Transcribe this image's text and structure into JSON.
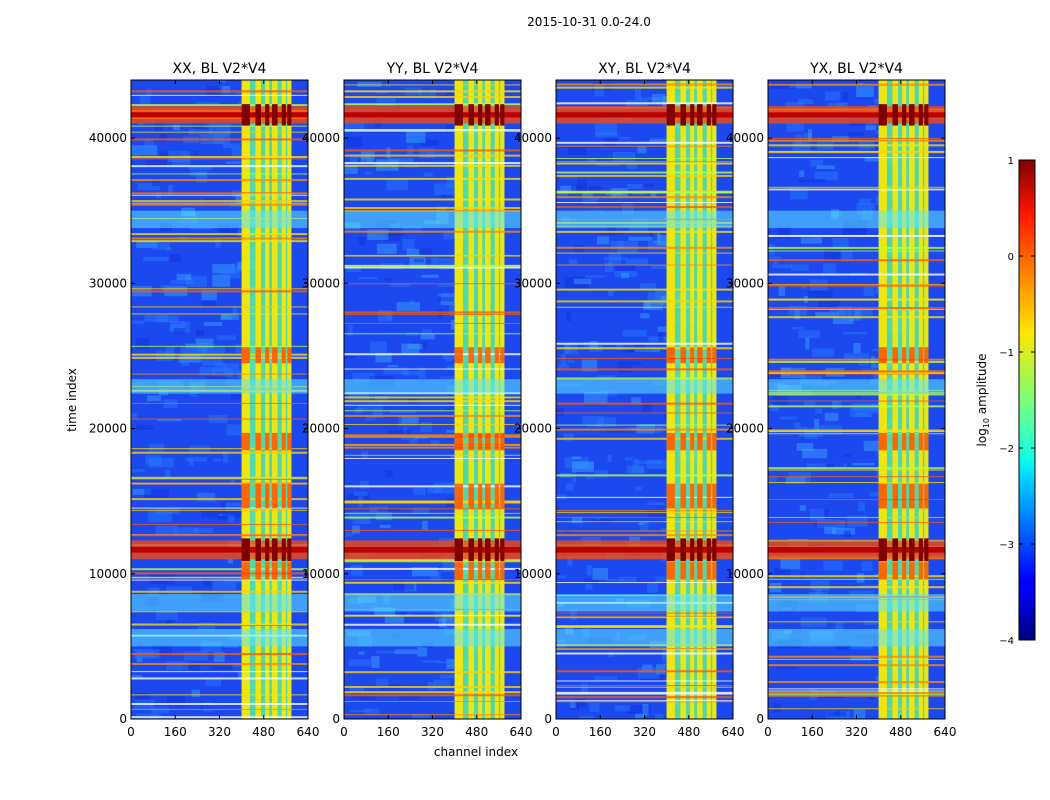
{
  "figure": {
    "suptitle": "2015-10-31 0.0-24.0",
    "ylabel": "time index",
    "xlabel": "channel index"
  },
  "colorbar": {
    "label_prefix": "log",
    "label_sub": "10",
    "label_suffix": " amplitude",
    "ticks": [
      1,
      0,
      -1,
      -2,
      -3,
      -4
    ],
    "tick_labels": [
      "1",
      "0",
      "−1",
      "−2",
      "−3",
      "−4"
    ],
    "vmin": -4,
    "vmax": 1,
    "colormap": "jet"
  },
  "chart_data": [
    {
      "type": "heatmap",
      "title": "XX, BL V2*V4",
      "xlabel": "",
      "ylabel": "time index",
      "xlim": [
        0,
        640
      ],
      "ylim": [
        0,
        44000
      ],
      "xticks": [
        0,
        160,
        320,
        480,
        640
      ],
      "yticks": [
        0,
        10000,
        20000,
        30000,
        40000
      ],
      "band_columns": [
        [
          400,
          430
        ],
        [
          450,
          470
        ],
        [
          485,
          500
        ],
        [
          510,
          530
        ],
        [
          545,
          560
        ],
        [
          565,
          580
        ]
      ],
      "high_rows": [
        [
          41000,
          42200
        ],
        [
          11000,
          12300
        ]
      ]
    },
    {
      "type": "heatmap",
      "title": "YY, BL V2*V4",
      "xlabel": "channel index",
      "ylabel": "",
      "xlim": [
        0,
        640
      ],
      "ylim": [
        0,
        44000
      ],
      "xticks": [
        0,
        160,
        320,
        480,
        640
      ],
      "yticks": [
        0,
        10000,
        20000,
        30000,
        40000
      ],
      "band_columns": [
        [
          400,
          430
        ],
        [
          450,
          470
        ],
        [
          485,
          500
        ],
        [
          510,
          530
        ],
        [
          545,
          560
        ],
        [
          565,
          580
        ]
      ],
      "high_rows": [
        [
          41000,
          42200
        ],
        [
          11000,
          12300
        ]
      ]
    },
    {
      "type": "heatmap",
      "title": "XY, BL V2*V4",
      "xlabel": "",
      "ylabel": "",
      "xlim": [
        0,
        640
      ],
      "ylim": [
        0,
        44000
      ],
      "xticks": [
        0,
        160,
        320,
        480,
        640
      ],
      "yticks": [
        0,
        10000,
        20000,
        30000,
        40000
      ],
      "band_columns": [
        [
          400,
          430
        ],
        [
          450,
          470
        ],
        [
          485,
          500
        ],
        [
          510,
          530
        ],
        [
          545,
          560
        ],
        [
          565,
          580
        ]
      ],
      "high_rows": [
        [
          41000,
          42200
        ],
        [
          11000,
          12300
        ]
      ]
    },
    {
      "type": "heatmap",
      "title": "YX, BL V2*V4",
      "xlabel": "",
      "ylabel": "",
      "xlim": [
        0,
        640
      ],
      "ylim": [
        0,
        44000
      ],
      "xticks": [
        0,
        160,
        320,
        480,
        640
      ],
      "yticks": [
        0,
        10000,
        20000,
        30000,
        40000
      ],
      "band_columns": [
        [
          400,
          430
        ],
        [
          450,
          470
        ],
        [
          485,
          500
        ],
        [
          510,
          530
        ],
        [
          545,
          560
        ],
        [
          565,
          580
        ]
      ],
      "high_rows": [
        [
          41000,
          42200
        ],
        [
          11000,
          12300
        ]
      ]
    }
  ]
}
